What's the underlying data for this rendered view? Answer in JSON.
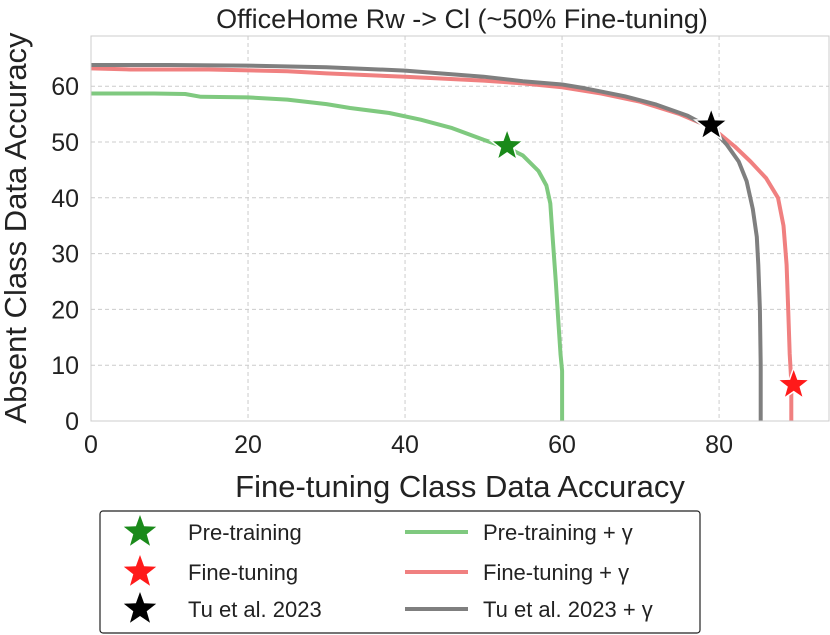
{
  "chart_data": {
    "type": "line",
    "title": "OfficeHome Rw -> Cl (~50% Fine-tuning)",
    "xlabel": "Fine-tuning Class Data Accuracy",
    "ylabel": "Absent Class Data Accuracy",
    "xlim": [
      0,
      94
    ],
    "ylim": [
      0,
      69
    ],
    "xticks": [
      0,
      20,
      40,
      60,
      80
    ],
    "yticks": [
      0,
      10,
      20,
      30,
      40,
      50,
      60
    ],
    "grid": true,
    "legend_position": "bottom",
    "series": [
      {
        "name": "Pre-training + γ",
        "color": "#7fc97f",
        "points": [
          [
            0,
            58.7
          ],
          [
            5,
            58.7
          ],
          [
            8,
            58.7
          ],
          [
            12,
            58.6
          ],
          [
            14,
            58.1
          ],
          [
            20,
            58.0
          ],
          [
            25,
            57.6
          ],
          [
            30,
            56.8
          ],
          [
            33,
            56.1
          ],
          [
            38,
            55.2
          ],
          [
            42,
            54.0
          ],
          [
            46,
            52.5
          ],
          [
            50,
            50.4
          ],
          [
            53,
            49.0
          ],
          [
            55,
            47.6
          ],
          [
            57,
            44.8
          ],
          [
            58,
            42.2
          ],
          [
            58.5,
            39.0
          ],
          [
            58.8,
            33.0
          ],
          [
            59.2,
            25.0
          ],
          [
            59.5,
            18.5
          ],
          [
            59.8,
            12.0
          ],
          [
            60.0,
            9.0
          ],
          [
            60.0,
            0
          ]
        ]
      },
      {
        "name": "Fine-tuning + γ",
        "color": "#f08080",
        "points": [
          [
            0,
            63.2
          ],
          [
            5,
            63.0
          ],
          [
            15,
            63.0
          ],
          [
            25,
            62.7
          ],
          [
            30,
            62.3
          ],
          [
            40,
            61.7
          ],
          [
            50,
            61.0
          ],
          [
            55,
            60.5
          ],
          [
            60,
            59.8
          ],
          [
            65,
            58.7
          ],
          [
            70,
            57.2
          ],
          [
            75,
            55.0
          ],
          [
            78,
            53.2
          ],
          [
            80,
            51.5
          ],
          [
            82,
            49.2
          ],
          [
            84,
            46.5
          ],
          [
            86,
            43.5
          ],
          [
            87.5,
            40.0
          ],
          [
            88.2,
            35.0
          ],
          [
            88.6,
            28.0
          ],
          [
            88.8,
            20.0
          ],
          [
            89.0,
            12.0
          ],
          [
            89.2,
            7.0
          ],
          [
            89.2,
            0
          ]
        ]
      },
      {
        "name": "Tu et al. 2023 + γ",
        "color": "#7f7f7f",
        "points": [
          [
            0,
            63.8
          ],
          [
            10,
            63.8
          ],
          [
            20,
            63.7
          ],
          [
            30,
            63.4
          ],
          [
            40,
            62.8
          ],
          [
            50,
            61.7
          ],
          [
            55,
            60.9
          ],
          [
            60,
            60.3
          ],
          [
            63,
            59.6
          ],
          [
            68,
            58.2
          ],
          [
            72,
            56.7
          ],
          [
            76,
            54.7
          ],
          [
            78,
            53.2
          ],
          [
            79.5,
            51.8
          ],
          [
            81,
            49.5
          ],
          [
            82.5,
            46.5
          ],
          [
            83.5,
            43.0
          ],
          [
            84.3,
            38.0
          ],
          [
            84.8,
            33.0
          ],
          [
            85.0,
            28.0
          ],
          [
            85.2,
            20.0
          ],
          [
            85.3,
            10.0
          ],
          [
            85.3,
            0
          ]
        ]
      }
    ],
    "markers": [
      {
        "name": "Pre-training",
        "x": 53.0,
        "y": 49.3,
        "color": "#1a8a1a"
      },
      {
        "name": "Fine-tuning",
        "x": 89.5,
        "y": 6.5,
        "color": "#ff1a1a"
      },
      {
        "name": "Tu et al. 2023",
        "x": 79.0,
        "y": 53.0,
        "color": "#000000"
      }
    ]
  }
}
